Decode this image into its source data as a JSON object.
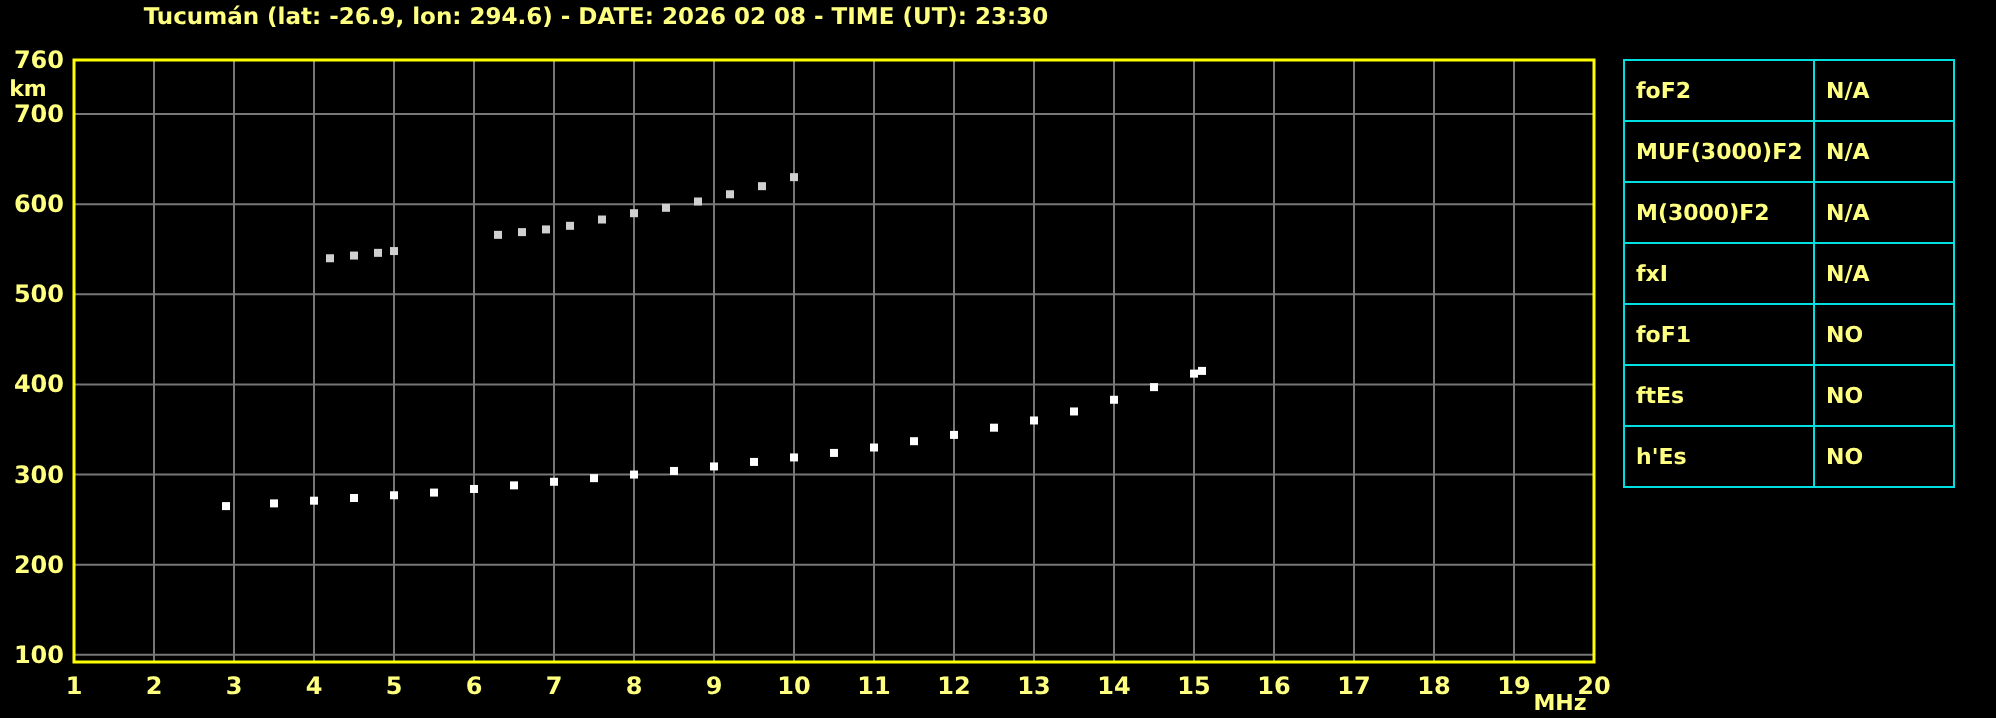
{
  "chart_data": [
    {
      "type": "scatter",
      "title": "Tucumán (lat: -26.9, lon: 294.6) - DATE: 2026 02 08 - TIME (UT): 23:30",
      "xlabel": "MHz",
      "ylabel": "km",
      "xlim": [
        1,
        20
      ],
      "xticks": [
        1,
        2,
        3,
        4,
        5,
        6,
        7,
        8,
        9,
        10,
        11,
        12,
        13,
        14,
        15,
        16,
        17,
        18,
        19,
        20
      ],
      "ylim": [
        92,
        760
      ],
      "yticks": [
        100,
        200,
        300,
        400,
        500,
        600,
        700,
        760
      ],
      "grid": true,
      "marker": "square",
      "series": [
        {
          "color": "#ffffff",
          "x": [
            2.9,
            3.5,
            4,
            4.5,
            5,
            5.5,
            6,
            6.5,
            7,
            7.5,
            8,
            8.5,
            9,
            9.5,
            10,
            10.5,
            11,
            11.5,
            12,
            12.5,
            13,
            13.5,
            14,
            14.5,
            15,
            15.1
          ],
          "values": [
            265,
            268,
            271,
            274,
            277,
            280,
            284,
            288,
            292,
            296,
            300,
            304,
            309,
            314,
            319,
            324,
            330,
            337,
            344,
            352,
            360,
            370,
            383,
            397,
            412,
            415
          ]
        },
        {
          "color": "#d0d0d0",
          "x": [
            4.2,
            4.5,
            4.8,
            5.0,
            6.3,
            6.6,
            6.9,
            7.2,
            7.6,
            8.0,
            8.4,
            8.8,
            9.2,
            9.6,
            10.0
          ],
          "values": [
            540,
            543,
            546,
            548,
            566,
            569,
            572,
            576,
            583,
            590,
            596,
            603,
            611,
            620,
            630
          ]
        }
      ]
    },
    {
      "type": "other",
      "categories": [
        "foF2",
        "MUF(3000)F2",
        "M(3000)F2",
        "fxI",
        "foF1",
        "ftEs",
        "h'Es"
      ],
      "value_labels": [
        "N/A",
        "N/A",
        "N/A",
        "N/A",
        "NO",
        "NO",
        "NO"
      ]
    }
  ]
}
